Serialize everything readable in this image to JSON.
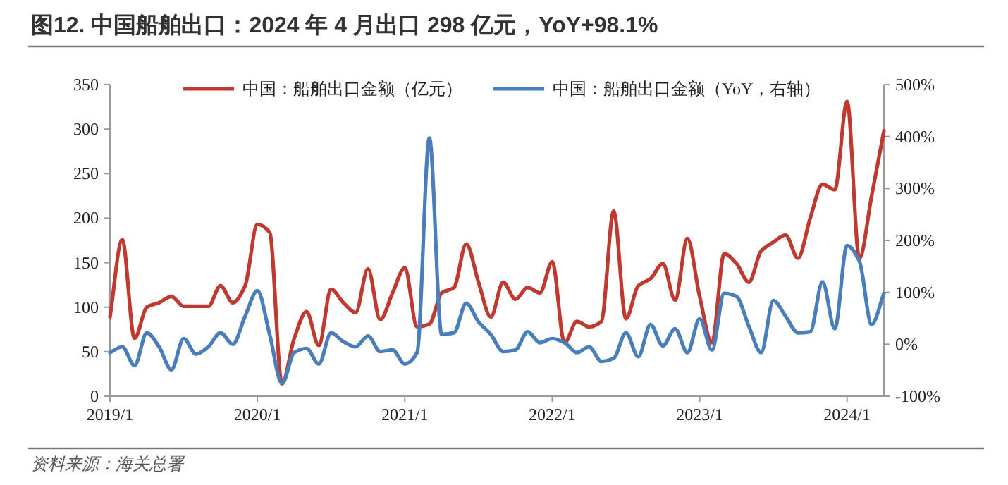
{
  "chart_data": {
    "type": "line",
    "title": "图12. 中国船舶出口：2024 年 4 月出口 298 亿元，YoY+98.1%",
    "categories": [
      "2019/1",
      null,
      null,
      null,
      null,
      null,
      null,
      null,
      null,
      null,
      null,
      null,
      "2020/1",
      null,
      null,
      null,
      null,
      null,
      null,
      null,
      null,
      null,
      null,
      null,
      "2021/1",
      null,
      null,
      null,
      null,
      null,
      null,
      null,
      null,
      null,
      null,
      null,
      "2022/1",
      null,
      null,
      null,
      null,
      null,
      null,
      null,
      null,
      null,
      null,
      null,
      "2023/1",
      null,
      null,
      null,
      null,
      null,
      null,
      null,
      null,
      null,
      null,
      null,
      "2024/1",
      null,
      null,
      null
    ],
    "series": [
      {
        "name": "中国：船舶出口金额（亿元）",
        "color": "#c0392f",
        "values": [
          89,
          176,
          65,
          100,
          105,
          112,
          101,
          101,
          101,
          124,
          105,
          124,
          193,
          184,
          14,
          65,
          95,
          57,
          120,
          105,
          94,
          143,
          86,
          116,
          144,
          78,
          81,
          116,
          122,
          171,
          128,
          89,
          128,
          109,
          122,
          116,
          151,
          60,
          84,
          78,
          84,
          208,
          87,
          124,
          132,
          149,
          108,
          177,
          112,
          60,
          160,
          149,
          128,
          163,
          173,
          181,
          155,
          200,
          238,
          232,
          331,
          155,
          225,
          298
        ]
      },
      {
        "name": "中国：船舶出口金额（YoY，右轴）",
        "color": "#4a7ebb",
        "axis": "y2",
        "values": [
          -16,
          -5,
          -41,
          22,
          -5,
          -49,
          11,
          -19,
          -5,
          22,
          0,
          54,
          103,
          19,
          -76,
          -16,
          -8,
          -38,
          22,
          5,
          -5,
          16,
          -14,
          -11,
          -38,
          -16,
          397,
          19,
          22,
          79,
          43,
          19,
          -14,
          -11,
          24,
          3,
          11,
          3,
          -16,
          -5,
          -33,
          -27,
          22,
          -24,
          38,
          -3,
          30,
          -16,
          49,
          -11,
          98,
          92,
          35,
          -16,
          84,
          54,
          22,
          24,
          120,
          30,
          190,
          160,
          38,
          98
        ]
      }
    ],
    "ylim": [
      0,
      350
    ],
    "yticks": [
      0,
      50,
      100,
      150,
      200,
      250,
      300,
      350
    ],
    "y2lim": [
      -100,
      500
    ],
    "y2ticks": [
      {
        "value": -100,
        "label": "-100%"
      },
      {
        "value": 0,
        "label": "0%"
      },
      {
        "value": 100,
        "label": "100%"
      },
      {
        "value": 200,
        "label": "200%"
      },
      {
        "value": 300,
        "label": "300%"
      },
      {
        "value": 400,
        "label": "400%"
      },
      {
        "value": 500,
        "label": "500%"
      }
    ],
    "legend": "top",
    "grid": false,
    "marker": "none",
    "line_style": "solid",
    "annotations": [
      "资料来源：海关总署"
    ]
  }
}
